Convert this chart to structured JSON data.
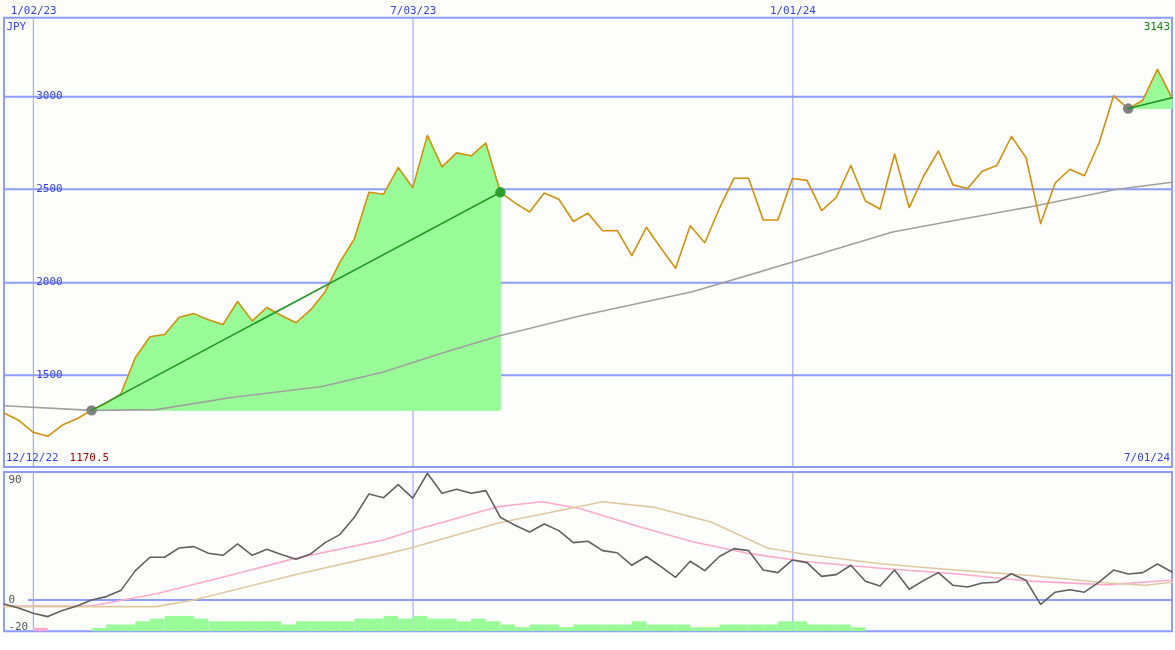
{
  "chart_data": [
    {
      "type": "line",
      "ylabel": "JPY",
      "xlim": [
        "2022-12-19",
        "2024-07-01"
      ],
      "xticks": [
        {
          "value": "2023-01-02",
          "label": "1/02/23"
        },
        {
          "value": "2023-07-03",
          "label": "7/03/23"
        },
        {
          "value": "2024-01-01",
          "label": "1/01/24"
        }
      ],
      "ylim": [
        1005,
        3420
      ],
      "yticks": [
        1500,
        2000,
        2500,
        3000
      ],
      "grid": true,
      "annotations": [
        "12/12/22",
        "1170.5",
        "7/01/24",
        "3143"
      ],
      "series": [
        {
          "color": "#a0a0a0",
          "x": [
            "2022-12-19",
            "2023-01-30",
            "2023-03-02",
            "2023-04-07",
            "2023-05-20",
            "2023-06-19",
            "2023-07-16",
            "2023-08-14",
            "2023-09-21",
            "2023-11-14",
            "2023-12-31",
            "2024-02-18",
            "2024-03-20",
            "2024-04-25",
            "2024-06-04",
            "2024-07-01"
          ],
          "values": [
            1335,
            1310,
            1314,
            1379,
            1437,
            1516,
            1614,
            1712,
            1817,
            1948,
            2103,
            2269,
            2333,
            2406,
            2497,
            2536
          ]
        },
        {
          "color": "#d4900a",
          "x": [
            "2022-12-19",
            "2022-12-26",
            "2023-01-02",
            "2023-01-09",
            "2023-01-16",
            "2023-01-23",
            "2023-01-30",
            "2023-02-06",
            "2023-02-13",
            "2023-02-20",
            "2023-02-27",
            "2023-03-06",
            "2023-03-13",
            "2023-03-20",
            "2023-03-27",
            "2023-04-03",
            "2023-04-10",
            "2023-04-17",
            "2023-04-24",
            "2023-05-01",
            "2023-05-08",
            "2023-05-15",
            "2023-05-22",
            "2023-05-29",
            "2023-06-05",
            "2023-06-12",
            "2023-06-19",
            "2023-06-26",
            "2023-07-03",
            "2023-07-10",
            "2023-07-17",
            "2023-07-24",
            "2023-07-31",
            "2023-08-07",
            "2023-08-14",
            "2023-08-21",
            "2023-08-28",
            "2023-09-04",
            "2023-09-11",
            "2023-09-18",
            "2023-09-25",
            "2023-10-02",
            "2023-10-09",
            "2023-10-16",
            "2023-10-23",
            "2023-10-30",
            "2023-11-06",
            "2023-11-13",
            "2023-11-20",
            "2023-11-27",
            "2023-12-04",
            "2023-12-11",
            "2023-12-18",
            "2023-12-25",
            "2024-01-01",
            "2024-01-08",
            "2024-01-15",
            "2024-01-22",
            "2024-01-29",
            "2024-02-05",
            "2024-02-12",
            "2024-02-19",
            "2024-02-26",
            "2024-03-04",
            "2024-03-11",
            "2024-03-18",
            "2024-03-25",
            "2024-04-01",
            "2024-04-08",
            "2024-04-15",
            "2024-04-22",
            "2024-04-29",
            "2024-05-06",
            "2024-05-13",
            "2024-05-20",
            "2024-05-27",
            "2024-06-03",
            "2024-06-10",
            "2024-06-17",
            "2024-06-24",
            "2024-07-01"
          ],
          "values": [
            1296,
            1257,
            1192,
            1170.5,
            1231,
            1265,
            1310,
            1349,
            1398,
            1594,
            1706,
            1718,
            1810,
            1830,
            1797,
            1771,
            1895,
            1791,
            1863,
            1820,
            1781,
            1850,
            1948,
            2105,
            2232,
            2482,
            2472,
            2615,
            2507,
            2788,
            2619,
            2694,
            2678,
            2747,
            2482,
            2425,
            2376,
            2478,
            2445,
            2325,
            2370,
            2275,
            2277,
            2142,
            2294,
            2181,
            2074,
            2302,
            2211,
            2396,
            2558,
            2558,
            2333,
            2333,
            2556,
            2546,
            2384,
            2454,
            2626,
            2435,
            2392,
            2688,
            2400,
            2571,
            2704,
            2522,
            2503,
            2595,
            2626,
            2782,
            2669,
            2314,
            2532,
            2606,
            2571,
            2747,
            3000,
            2932,
            2977,
            3143,
            2990
          ],
          "lower": [
            null,
            null,
            null,
            null,
            null,
            null,
            1310,
            1310,
            1310,
            1310,
            1310,
            1310,
            1310,
            1310,
            1310,
            1310,
            1310,
            1310,
            1310,
            1310,
            1310,
            1310,
            1310,
            1310,
            1310,
            1310,
            1310,
            1310,
            1310,
            1310,
            1310,
            1310,
            1310,
            1310,
            1310,
            null,
            null,
            null,
            null,
            null,
            null,
            null,
            null,
            null,
            null,
            null,
            null,
            null,
            null,
            null,
            null,
            null,
            null,
            null,
            null,
            null,
            null,
            null,
            null,
            null,
            null,
            null,
            null,
            null,
            null,
            null,
            null,
            null,
            null,
            null,
            null,
            null,
            null,
            null,
            null,
            null,
            null,
            2932,
            2932,
            2932,
            2932
          ],
          "upper": [
            null,
            null,
            null,
            null,
            null,
            null,
            1310,
            1349,
            1398,
            1594,
            1706,
            1718,
            1810,
            1830,
            1797,
            1771,
            1895,
            1791,
            1863,
            1820,
            1781,
            1850,
            1948,
            2105,
            2232,
            2482,
            2472,
            2615,
            2507,
            2788,
            2619,
            2694,
            2678,
            2747,
            2482,
            null,
            null,
            null,
            null,
            null,
            null,
            null,
            null,
            null,
            null,
            null,
            null,
            null,
            null,
            null,
            null,
            null,
            null,
            null,
            null,
            null,
            null,
            null,
            null,
            null,
            null,
            null,
            null,
            null,
            null,
            null,
            null,
            null,
            null,
            null,
            null,
            null,
            null,
            null,
            null,
            null,
            null,
            2932,
            2977,
            3143,
            2990
          ]
        },
        {
          "type": "scatter",
          "color": "#808080",
          "x": [
            "2023-01-30",
            "2024-06-10"
          ],
          "values": [
            1310,
            2932
          ]
        },
        {
          "type": "scatter",
          "color": "#2e9e2e",
          "x": [
            "2023-08-14"
          ],
          "values": [
            2482
          ]
        },
        {
          "type": "line",
          "color": "#229922",
          "x": [
            "2023-01-30",
            "2023-08-14"
          ],
          "values": [
            1310,
            2482
          ]
        },
        {
          "type": "line",
          "color": "#1f8f1f",
          "x": [
            "2024-06-10",
            "2024-07-01"
          ],
          "values": [
            2932,
            2990
          ]
        }
      ]
    },
    {
      "type": "line",
      "xlim": [
        "2022-12-19",
        "2024-07-01"
      ],
      "xticks": [
        {
          "value": "2023-01-02",
          "label": null
        },
        {
          "value": "2023-07-03",
          "label": null
        },
        {
          "value": "2024-01-01",
          "label": null
        }
      ],
      "tick_labels": "y",
      "ylim": [
        -23.4,
        95.9
      ],
      "yticks": [
        90,
        0,
        -20
      ],
      "grid": "x",
      "ref_lines": [
        {
          "axis": "y",
          "value": 0
        }
      ],
      "series": [
        {
          "type": "bar",
          "color": "#ffaacc",
          "x": [
            "2023-01-02"
          ],
          "values": [
            2.5
          ],
          "base": [
            -23.4
          ]
        },
        {
          "type": "bar",
          "color": "#98fb98",
          "x": [
            "2023-01-30",
            "2023-02-06",
            "2023-02-13",
            "2023-02-20",
            "2023-02-27",
            "2023-03-06",
            "2023-03-13",
            "2023-03-20",
            "2023-03-27",
            "2023-04-03",
            "2023-04-10",
            "2023-04-17",
            "2023-04-24",
            "2023-05-01",
            "2023-05-08",
            "2023-05-15",
            "2023-05-22",
            "2023-05-29",
            "2023-06-05",
            "2023-06-12",
            "2023-06-19",
            "2023-06-26",
            "2023-07-03",
            "2023-07-10",
            "2023-07-17",
            "2023-07-24",
            "2023-07-31",
            "2023-08-07",
            "2023-08-14",
            "2023-08-21",
            "2023-08-28",
            "2023-09-04",
            "2023-09-11",
            "2023-09-18",
            "2023-09-25",
            "2023-10-02",
            "2023-10-09",
            "2023-10-16",
            "2023-10-23",
            "2023-10-30",
            "2023-11-06",
            "2023-11-13",
            "2023-11-20",
            "2023-11-27",
            "2023-12-04",
            "2023-12-11",
            "2023-12-18",
            "2023-12-25",
            "2024-01-01",
            "2024-01-08",
            "2024-01-15",
            "2024-01-22",
            "2024-01-29"
          ],
          "values": [
            2.4,
            5,
            5,
            7.4,
            9.4,
            11.4,
            11.4,
            9.4,
            7.4,
            7.4,
            7.4,
            7.4,
            7.4,
            5,
            7.4,
            7.4,
            7.4,
            7.4,
            9.4,
            9.4,
            11.4,
            9.4,
            11.4,
            9.4,
            9.4,
            7.4,
            9.4,
            7.4,
            5,
            3,
            5,
            5,
            3,
            5,
            5,
            5,
            5,
            7.4,
            5,
            5,
            5,
            2.9,
            2.9,
            5,
            5,
            5,
            5,
            7.4,
            7.4,
            5,
            5,
            5,
            2.9
          ],
          "base": [
            -23.4,
            -23.4,
            -23.4,
            -23.4,
            -23.4,
            -23.4,
            -23.4,
            -23.4,
            -23.4,
            -23.4,
            -23.4,
            -23.4,
            -23.4,
            -23.4,
            -23.4,
            -23.4,
            -23.4,
            -23.4,
            -23.4,
            -23.4,
            -23.4,
            -23.4,
            -23.4,
            -23.4,
            -23.4,
            -23.4,
            -23.4,
            -23.4,
            -23.4,
            -23.4,
            -23.4,
            -23.4,
            -23.4,
            -23.4,
            -23.4,
            -23.4,
            -23.4,
            -23.4,
            -23.4,
            -23.4,
            -23.4,
            -23.4,
            -23.4,
            -23.4,
            -23.4,
            -23.4,
            -23.4,
            -23.4,
            -23.4,
            -23.4,
            -23.4,
            -23.4,
            -23.4
          ]
        },
        {
          "color": "#ffaacc",
          "x": [
            "2022-12-19",
            "2023-01-30",
            "2023-03-02",
            "2023-04-07",
            "2023-05-07",
            "2023-06-19",
            "2023-07-02",
            "2023-08-13",
            "2023-09-03",
            "2023-09-21",
            "2023-10-18",
            "2023-11-14",
            "2023-12-11",
            "2024-01-07",
            "2024-02-12",
            "2024-03-19",
            "2024-04-24",
            "2024-05-31",
            "2024-07-01"
          ],
          "values": [
            -4.5,
            -4.5,
            4.7,
            18.7,
            31,
            45,
            51.6,
            70,
            73.6,
            68.6,
            55.6,
            43.7,
            34.9,
            28.8,
            23.8,
            19.6,
            14.1,
            11.3,
            15
          ]
        },
        {
          "color": "#e0c8a0",
          "x": [
            "2022-12-19",
            "2023-03-02",
            "2023-03-20",
            "2023-05-07",
            "2023-06-19",
            "2023-07-02",
            "2023-08-13",
            "2023-10-02",
            "2023-10-27",
            "2023-11-23",
            "2023-12-20",
            "2024-01-07",
            "2024-02-12",
            "2024-03-19",
            "2024-04-24",
            "2024-05-31",
            "2024-06-18",
            "2024-07-01"
          ],
          "values": [
            -5,
            -5,
            0,
            18.7,
            34,
            39,
            57.7,
            73.6,
            69.4,
            58.4,
            39,
            34.3,
            27.1,
            22.4,
            18.3,
            12.7,
            11,
            13.3
          ]
        },
        {
          "color": "#606060",
          "x": [
            "2022-12-19",
            "2022-12-26",
            "2023-01-02",
            "2023-01-09",
            "2023-01-16",
            "2023-01-23",
            "2023-01-30",
            "2023-02-06",
            "2023-02-13",
            "2023-02-20",
            "2023-02-27",
            "2023-03-06",
            "2023-03-13",
            "2023-03-20",
            "2023-03-27",
            "2023-04-03",
            "2023-04-10",
            "2023-04-17",
            "2023-04-24",
            "2023-05-01",
            "2023-05-08",
            "2023-05-15",
            "2023-05-22",
            "2023-05-29",
            "2023-06-05",
            "2023-06-12",
            "2023-06-19",
            "2023-06-26",
            "2023-07-03",
            "2023-07-10",
            "2023-07-17",
            "2023-07-24",
            "2023-07-31",
            "2023-08-07",
            "2023-08-14",
            "2023-08-21",
            "2023-08-28",
            "2023-09-04",
            "2023-09-11",
            "2023-09-18",
            "2023-09-25",
            "2023-10-02",
            "2023-10-09",
            "2023-10-16",
            "2023-10-23",
            "2023-10-30",
            "2023-11-06",
            "2023-11-13",
            "2023-11-20",
            "2023-11-27",
            "2023-12-04",
            "2023-12-11",
            "2023-12-18",
            "2023-12-25",
            "2024-01-01",
            "2024-01-08",
            "2024-01-15",
            "2024-01-22",
            "2024-01-29",
            "2024-02-05",
            "2024-02-12",
            "2024-02-19",
            "2024-02-26",
            "2024-03-04",
            "2024-03-11",
            "2024-03-18",
            "2024-03-25",
            "2024-04-01",
            "2024-04-08",
            "2024-04-15",
            "2024-04-22",
            "2024-04-29",
            "2024-05-06",
            "2024-05-13",
            "2024-05-20",
            "2024-05-27",
            "2024-06-03",
            "2024-06-10",
            "2024-06-17",
            "2024-06-24",
            "2024-07-01"
          ],
          "values": [
            -3,
            -6,
            -10,
            -12.5,
            -8,
            -4.5,
            0,
            2.5,
            7,
            22,
            32,
            32,
            39,
            40,
            35,
            33.5,
            42,
            33.5,
            38,
            34,
            30.5,
            34.5,
            43,
            49,
            62,
            79.5,
            76.7,
            86.5,
            76.4,
            95,
            80,
            83,
            80,
            82,
            62,
            56,
            51,
            57,
            52,
            43,
            44,
            37,
            35.4,
            26,
            32.6,
            25,
            17,
            29,
            22,
            32.6,
            38.5,
            37,
            22.4,
            20.5,
            30,
            28,
            17.7,
            19,
            26,
            14,
            10.5,
            22.4,
            8,
            14.7,
            20.5,
            11,
            9.7,
            12.7,
            13.3,
            19.6,
            14.7,
            -3.3,
            5.8,
            7.7,
            5.8,
            13.3,
            22.4,
            19.4,
            20.5,
            27,
            21
          ]
        }
      ]
    }
  ]
}
